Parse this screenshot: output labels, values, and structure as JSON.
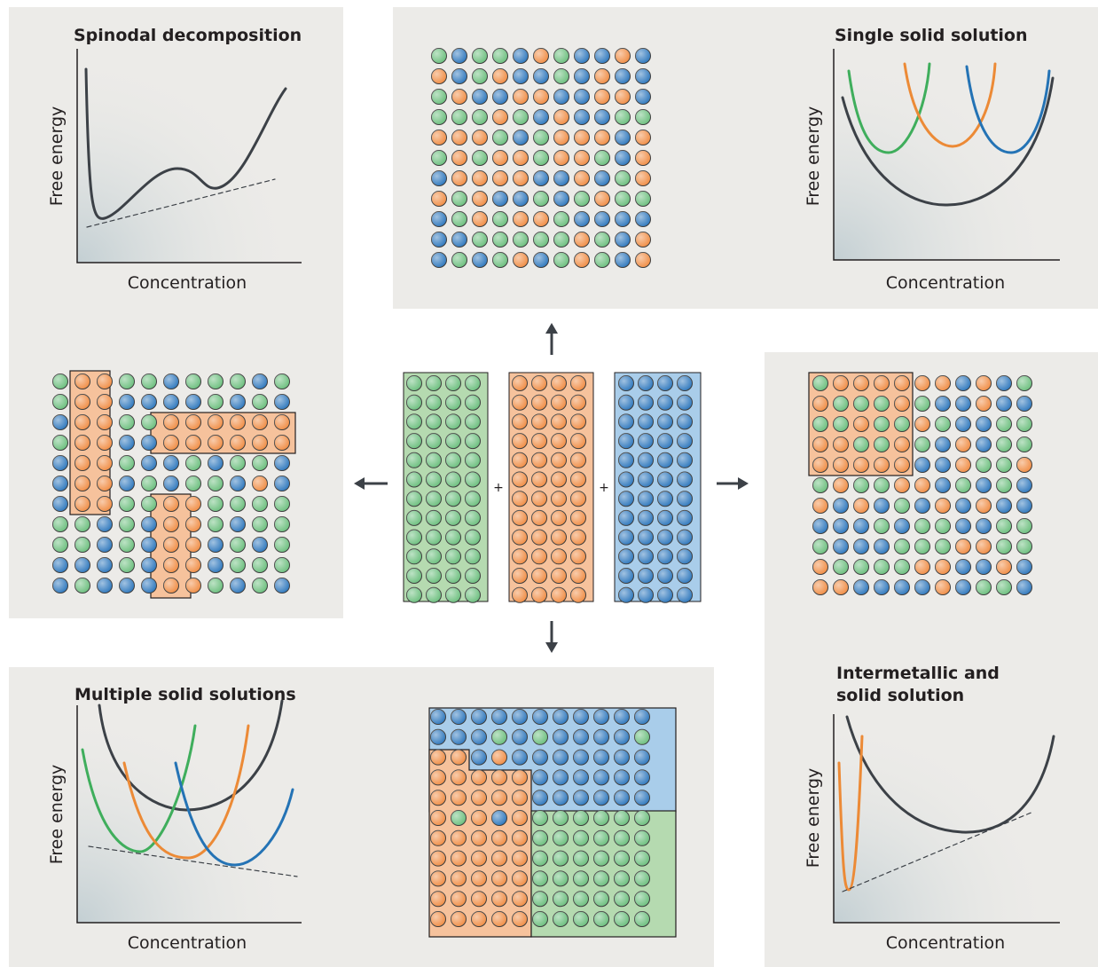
{
  "panels": [
    {
      "title": "Spinodal decomposition",
      "y_label": "Free energy",
      "x_label": "Concentration"
    },
    {
      "title": "Single solid solution",
      "y_label": "Free energy",
      "x_label": "Concentration"
    },
    {
      "title": "Multiple solid solutions",
      "y_label": "Free energy",
      "x_label": "Concentration"
    },
    {
      "title_lines": [
        "Intermetallic and",
        "solid solution"
      ],
      "y_label": "Free energy",
      "x_label": "Concentration"
    }
  ],
  "center": {
    "plus_signs": [
      "+",
      "+"
    ]
  }
}
